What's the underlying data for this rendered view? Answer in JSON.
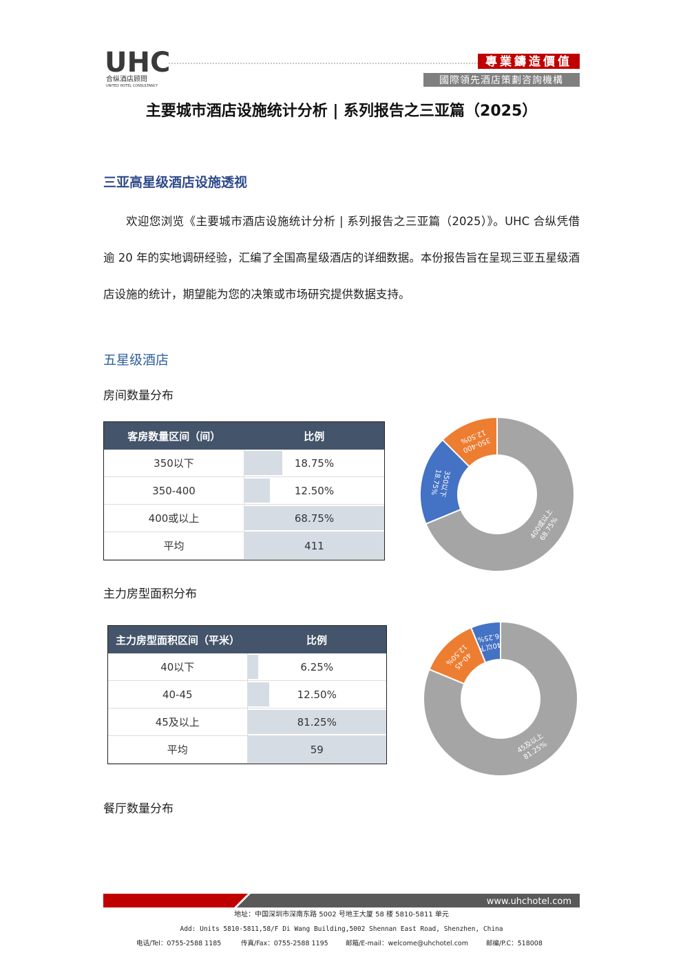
{
  "header": {
    "logo": "UHC",
    "logo_sub": "合纵酒店顾問",
    "logo_en": "UNITED HOTEL CONSULTANCY",
    "slogan": "專業鑄造價值",
    "tagline": "國際領先酒店策劃咨詢機構"
  },
  "title": "主要城市酒店设施统计分析 | 系列报告之三亚篇（2025）",
  "section": "三亚高星级酒店设施透视",
  "paragraph": "欢迎您浏览《主要城市酒店设施统计分析 | 系列报告之三亚篇（2025）》。UHC 合纵凭借逾 20 年的实地调研经验，汇编了全国高星级酒店的详细数据。本份报告旨在呈现三亚五星级酒店设施的统计，期望能为您的决策或市场研究提供数据支持。",
  "subsection": "五星级酒店",
  "blocks": [
    {
      "heading": "房间数量分布",
      "table": {
        "header": [
          "客房数量区间（间）",
          "比例"
        ],
        "rows": [
          [
            "350以下",
            "18.75%"
          ],
          [
            "350-400",
            "12.50%"
          ],
          [
            "400或以上",
            "68.75%"
          ],
          [
            "平均",
            "411"
          ]
        ]
      },
      "chart": {
        "type": "pie",
        "categories": [
          "400或以上",
          "350以下",
          "350-400"
        ],
        "values": [
          68.75,
          18.75,
          12.5
        ],
        "value_labels": [
          "68.75%",
          "18.75%",
          "12.50%"
        ],
        "colors": [
          "#a5a5a5",
          "#4472c4",
          "#ed7d31"
        ]
      }
    },
    {
      "heading": "主力房型面积分布",
      "table": {
        "header": [
          "主力房型面积区间（平米）",
          "比例"
        ],
        "rows": [
          [
            "40以下",
            "6.25%"
          ],
          [
            "40-45",
            "12.50%"
          ],
          [
            "45及以上",
            "81.25%"
          ],
          [
            "平均",
            "59"
          ]
        ]
      },
      "chart": {
        "type": "pie",
        "categories": [
          "45及以上",
          "40-45",
          "40以下"
        ],
        "values": [
          81.25,
          12.5,
          6.25
        ],
        "value_labels": [
          "81.25%",
          "12.50%",
          "6.25%"
        ],
        "colors": [
          "#a5a5a5",
          "#ed7d31",
          "#4472c4"
        ]
      }
    }
  ],
  "last_heading": "餐厅数量分布",
  "footer": {
    "website": "www.uhchotel.com",
    "address_cn": "地址：中国深圳市深南东路 5002 号地王大厦 58 楼 5810-5811 单元",
    "address_en": "Add: Units 5810-5811,58/F Di Wang Building,5002 Shennan East Road, Shenzhen, China",
    "contacts": [
      "电话/Tel：0755-2588 1185",
      "传真/Fax：0755-2588 1195",
      "邮箱/E-mail：welcome@uhchotel.com",
      "邮编/P.C：518008"
    ]
  }
}
